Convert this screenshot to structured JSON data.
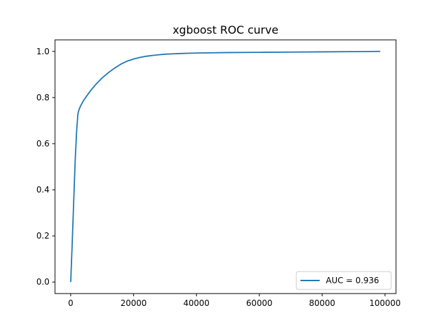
{
  "chart_data": {
    "type": "line",
    "title": "xgboost ROC curve",
    "xlabel": "",
    "ylabel": "",
    "xlim": [
      -5000,
      103500
    ],
    "ylim": [
      -0.05,
      1.05
    ],
    "x_ticks": [
      0,
      20000,
      40000,
      60000,
      80000,
      100000
    ],
    "y_ticks": [
      0.0,
      0.2,
      0.4,
      0.6,
      0.8,
      1.0
    ],
    "x_tick_labels": [
      "0",
      "20000",
      "40000",
      "60000",
      "80000",
      "100000"
    ],
    "y_tick_labels": [
      "0.0",
      "0.2",
      "0.4",
      "0.6",
      "0.8",
      "1.0"
    ],
    "grid": false,
    "legend_position": "lower-right",
    "series": [
      {
        "name": "AUC = 0.936",
        "color": "#1f77b4",
        "x": [
          0,
          400,
          900,
          1400,
          1900,
          2300,
          2700,
          3200,
          4000,
          5000,
          6500,
          8000,
          10000,
          12000,
          14000,
          16000,
          18000,
          20000,
          22000,
          24000,
          27000,
          30000,
          35000,
          40000,
          50000,
          60000,
          70000,
          80000,
          90000,
          98500
        ],
        "y": [
          0.0,
          0.14,
          0.33,
          0.52,
          0.66,
          0.73,
          0.75,
          0.765,
          0.785,
          0.805,
          0.833,
          0.857,
          0.885,
          0.908,
          0.928,
          0.945,
          0.958,
          0.967,
          0.974,
          0.979,
          0.984,
          0.988,
          0.991,
          0.993,
          0.995,
          0.996,
          0.997,
          0.998,
          0.999,
          1.0
        ]
      }
    ]
  }
}
